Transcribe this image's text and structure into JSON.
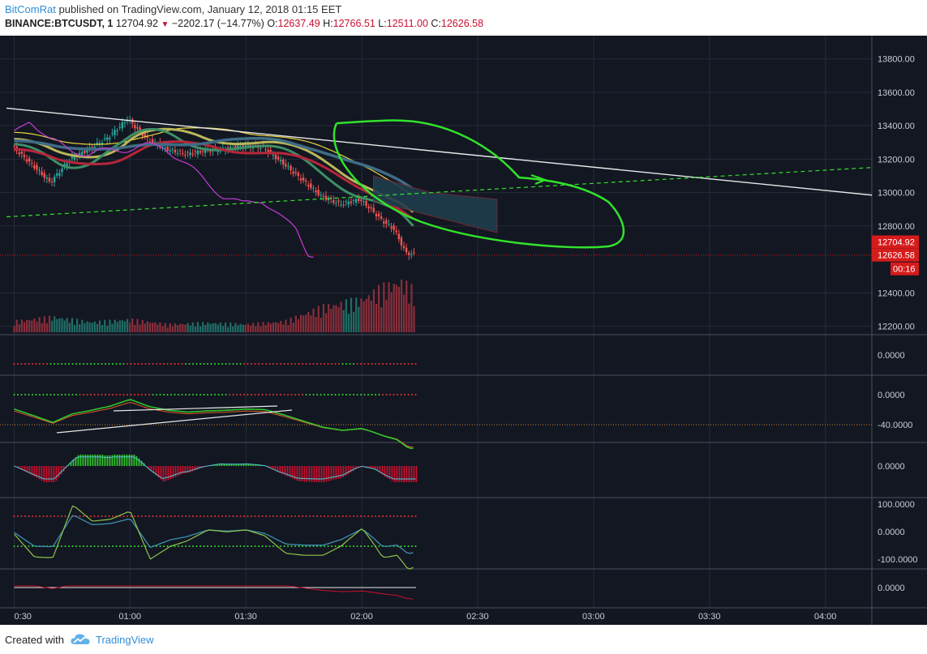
{
  "header": {
    "author": "BitComRat",
    "published": "published on TradingView.com, January 12, 2018 01:15 EET",
    "symbol": "BINANCE:BTCUSDT, 1",
    "last": "12704.92",
    "change": "−2202.17 (−14.77%)",
    "o_label": "O:",
    "o_value": "12637.49",
    "h_label": "H:",
    "h_value": "12766.51",
    "l_label": "L:",
    "l_value": "12511.00",
    "c_label": "C:",
    "c_value": "12626.58"
  },
  "footer": {
    "created_with": "Created with",
    "brand": "TradingView"
  },
  "colors": {
    "background": "#131722",
    "grid": "#262b3a",
    "up": "#26a69a",
    "down": "#ef5350",
    "annotation": "#31e32b",
    "trendline": "#e8e8e8",
    "purple": "#c43cd6",
    "price_tag": "#d61b1b"
  },
  "price_axis": {
    "ticks": [
      "13800.00",
      "13600.00",
      "13400.00",
      "13200.00",
      "13000.00",
      "12800.00",
      "12400.00",
      "12200.00"
    ],
    "last_price_tag": "12704.92",
    "close_tag": "12626.58",
    "countdown": "00:16"
  },
  "time_axis": {
    "ticks": [
      "0:30",
      "01:00",
      "01:30",
      "02:00",
      "02:30",
      "03:00",
      "03:30",
      "04:00"
    ]
  },
  "indicator_axes": [
    {
      "pane": "indicator-1",
      "ticks": [
        "0.0000"
      ]
    },
    {
      "pane": "indicator-2",
      "ticks": [
        "0.0000",
        "-40.0000"
      ]
    },
    {
      "pane": "macd",
      "ticks": [
        "0.0000"
      ]
    },
    {
      "pane": "oscillator",
      "ticks": [
        "100.0000",
        "0.0000",
        "-100.0000"
      ]
    },
    {
      "pane": "indicator-5",
      "ticks": [
        "0.0000"
      ]
    }
  ],
  "chart_data": {
    "type": "candlestick",
    "symbol": "BINANCE:BTCUSDT",
    "interval": "1",
    "ylim": [
      12150,
      13900
    ],
    "x_range": [
      "00:28",
      "04:12"
    ],
    "ohlc_last": {
      "open": 12637.49,
      "high": 12766.51,
      "low": 12511.0,
      "close": 12626.58
    },
    "price_path": [
      [
        "00:30",
        13280
      ],
      [
        "00:36",
        13150
      ],
      [
        "00:40",
        13060
      ],
      [
        "00:45",
        13200
      ],
      [
        "00:50",
        13260
      ],
      [
        "00:55",
        13330
      ],
      [
        "01:00",
        13440
      ],
      [
        "01:05",
        13320
      ],
      [
        "01:10",
        13260
      ],
      [
        "01:15",
        13230
      ],
      [
        "01:20",
        13250
      ],
      [
        "01:25",
        13260
      ],
      [
        "01:30",
        13280
      ],
      [
        "01:35",
        13270
      ],
      [
        "01:40",
        13180
      ],
      [
        "01:45",
        13080
      ],
      [
        "01:50",
        12980
      ],
      [
        "01:55",
        12930
      ],
      [
        "02:00",
        12960
      ],
      [
        "02:03",
        12900
      ],
      [
        "02:06",
        12830
      ],
      [
        "02:09",
        12780
      ],
      [
        "02:12",
        12640
      ],
      [
        "02:14",
        12627
      ]
    ],
    "volume": [
      [
        "00:30",
        30
      ],
      [
        "00:40",
        42
      ],
      [
        "00:50",
        28
      ],
      [
        "01:00",
        35
      ],
      [
        "01:10",
        22
      ],
      [
        "01:20",
        26
      ],
      [
        "01:30",
        22
      ],
      [
        "01:40",
        30
      ],
      [
        "01:50",
        70
      ],
      [
        "02:00",
        90
      ],
      [
        "02:05",
        120
      ],
      [
        "02:10",
        140
      ],
      [
        "02:14",
        110
      ]
    ],
    "trendline_descending": {
      "start": [
        "00:28",
        13505
      ],
      "end": [
        "04:12",
        12985
      ]
    },
    "trendline_ascending_dashed": {
      "start": [
        "00:28",
        12855
      ],
      "end": [
        "04:12",
        13150
      ]
    },
    "annotations": [
      "green ellipse drawn around projected cloud area near 02:30",
      "green arrow toward descending trendline"
    ],
    "legend": "none",
    "grid": true
  }
}
